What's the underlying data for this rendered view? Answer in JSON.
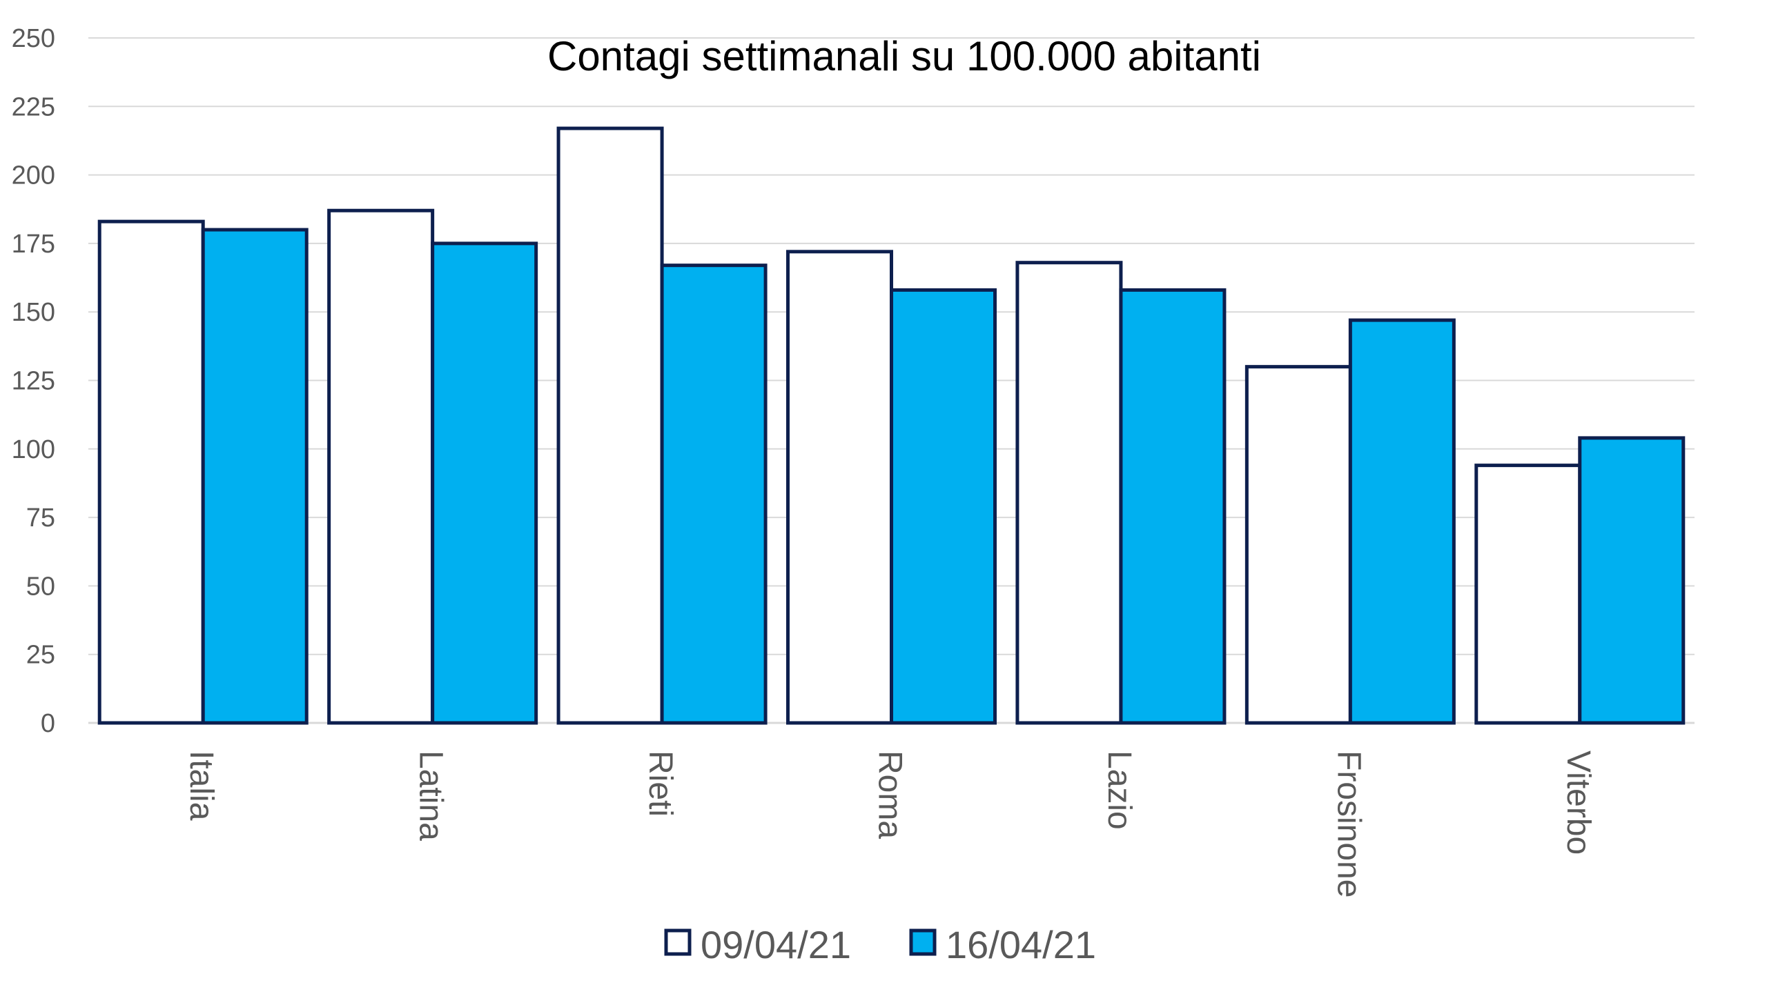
{
  "chart_data": {
    "type": "bar",
    "title": "Contagi settimanali su 100.000 abitanti",
    "xlabel": "",
    "ylabel": "",
    "ylim": [
      0,
      250
    ],
    "yticks": [
      "0",
      "25",
      "50",
      "75",
      "100",
      "125",
      "150",
      "175",
      "200",
      "225",
      "250"
    ],
    "grid": true,
    "legend_position": "bottom",
    "categories": [
      "Italia",
      "Latina",
      "Rieti",
      "Roma",
      "Lazio",
      "Frosinone",
      "Viterbo"
    ],
    "series": [
      {
        "name": "09/04/21",
        "color": "#ffffff",
        "values": [
          183,
          187,
          217,
          172,
          168,
          130,
          94
        ]
      },
      {
        "name": "16/04/21",
        "color": "#00b0f0",
        "values": [
          180,
          175,
          167,
          158,
          158,
          147,
          104
        ]
      }
    ],
    "bar_outline_color": "#0d1f4e"
  }
}
